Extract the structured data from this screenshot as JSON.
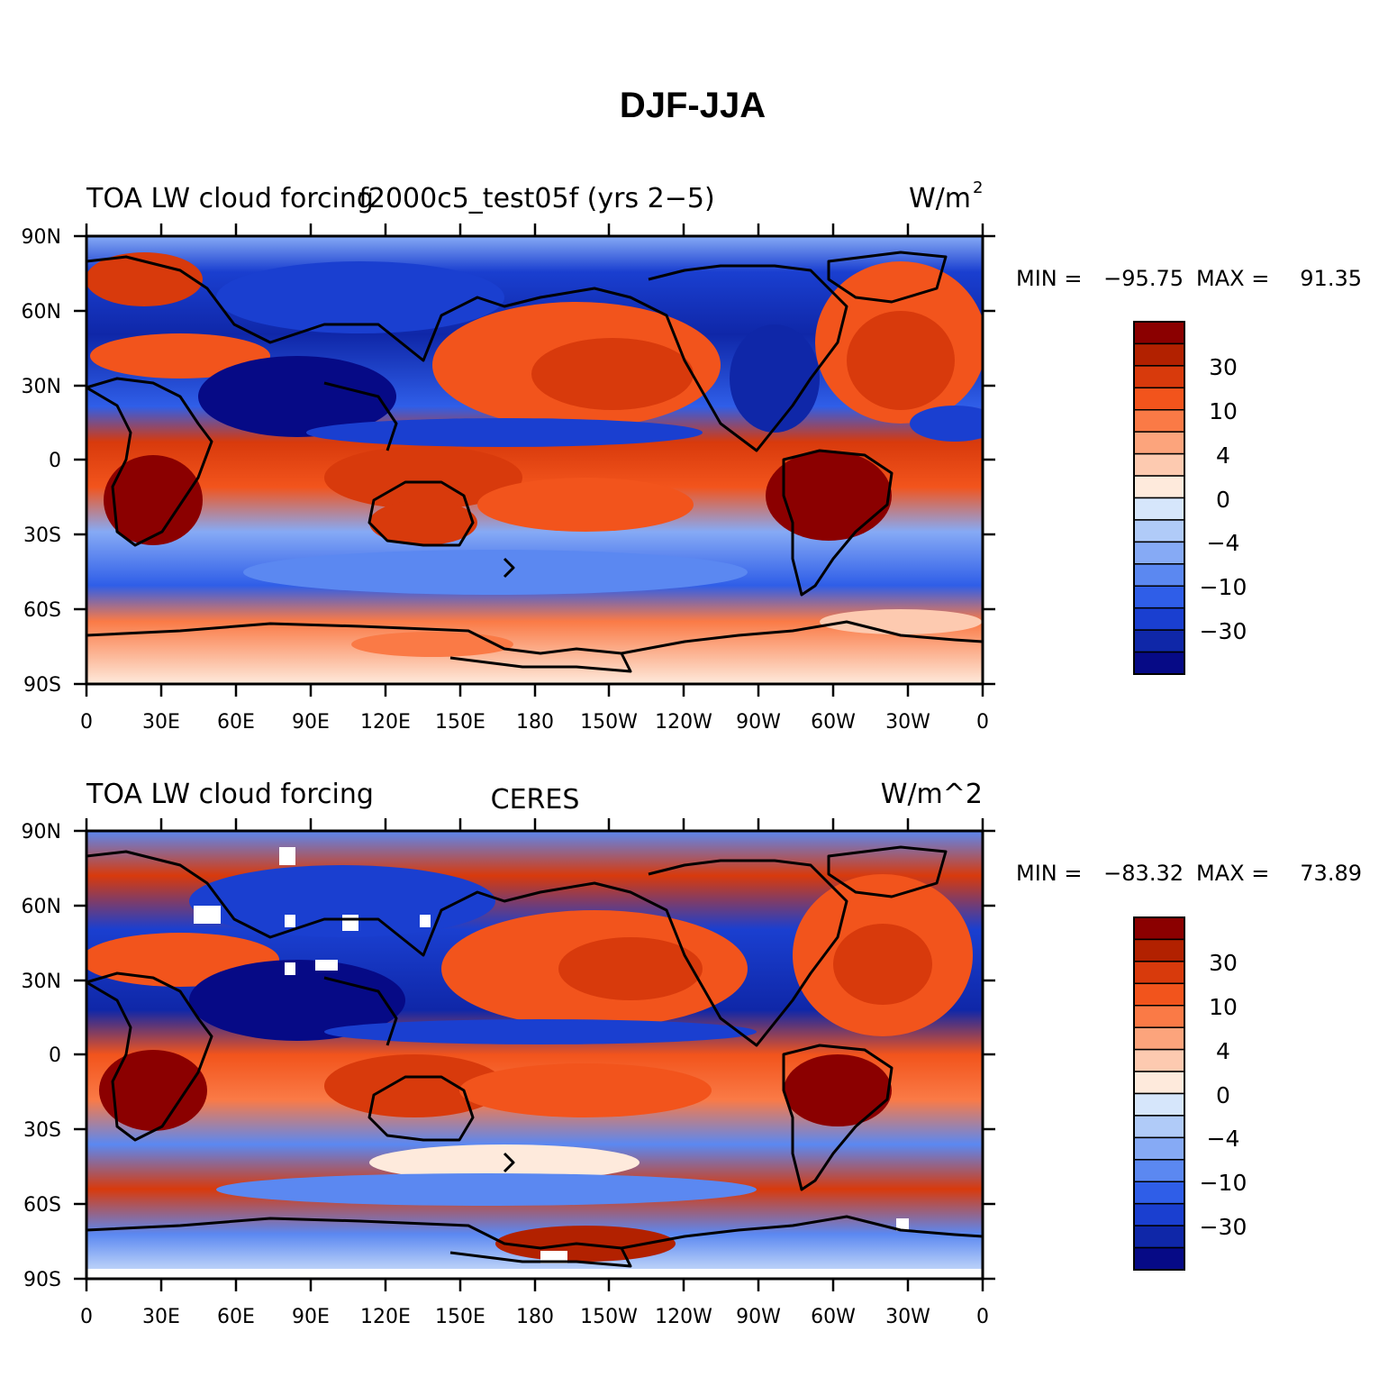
{
  "figure": {
    "title": "DJF-JJA"
  },
  "lon_labels": [
    "0",
    "30E",
    "60E",
    "90E",
    "120E",
    "150E",
    "180",
    "150W",
    "120W",
    "90W",
    "60W",
    "30W",
    "0"
  ],
  "lat_labels": [
    "90N",
    "60N",
    "30N",
    "0",
    "30S",
    "60S",
    "90S"
  ],
  "colorbar_labels": [
    "30",
    "10",
    "4",
    "0",
    "−4",
    "−10",
    "−30"
  ],
  "colorbar_colors": [
    "#8b0000",
    "#b22100",
    "#d83a0c",
    "#f2541c",
    "#fa7a46",
    "#fca47c",
    "#fdcab0",
    "#feeadc",
    "#d6e6fb",
    "#b0cbf8",
    "#86aaf5",
    "#5b88f1",
    "#2f5ee8",
    "#1a3fd0",
    "#0f27a8",
    "#060a86"
  ],
  "panels": [
    {
      "left_label": "TOA LW cloud forcing",
      "center_label": "f2000c5_test05f (yrs 2−5)",
      "units_prefix": "W/m",
      "units_sup": "2",
      "min_label": "MIN =",
      "min_value": "−95.75",
      "max_label": "MAX =",
      "max_value": "91.35"
    },
    {
      "left_label": "TOA LW cloud forcing",
      "center_label": "CERES",
      "units": "W/m^2",
      "min_label": "MIN =",
      "min_value": "−83.32",
      "max_label": "MAX =",
      "max_value": "73.89"
    }
  ]
}
